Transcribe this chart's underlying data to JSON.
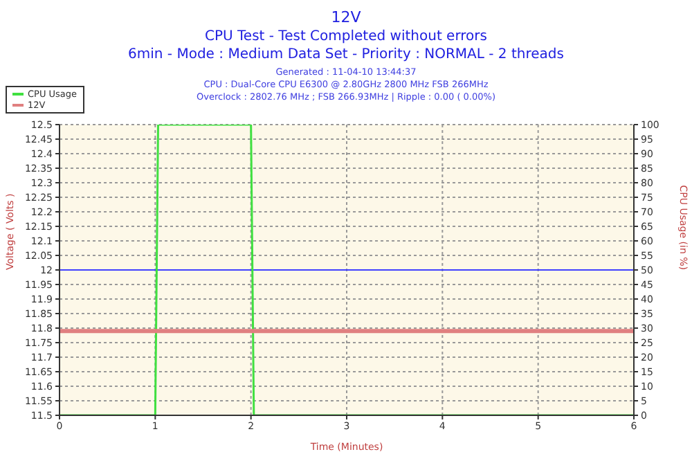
{
  "chart_data": {
    "type": "line",
    "title": "12V",
    "subtitle": "CPU Test - Test Completed without errors\n6min - Mode : Medium Data Set - Priority : NORMAL - 2 threads",
    "annotations": [
      "Generated : 11-04-10 13:44:37",
      "CPU : Dual-Core CPU E6300 @ 2.80GHz 2800 MHz FSB 266MHz",
      "Overclock : 2802.76 MHz ; FSB 266.93MHz | Ripple : 0.00 ( 0.00%)"
    ],
    "xlabel": "Time (Minutes)",
    "ylabel": "Voltage ( Volts )",
    "y2label": "CPU Usage (in %)",
    "series": [
      {
        "name": "CPU Usage",
        "color": "#40e040",
        "axis": "y2",
        "x": [
          0,
          1,
          1.03,
          2,
          2.03,
          6
        ],
        "values": [
          0,
          0,
          100,
          100,
          0,
          0
        ]
      },
      {
        "name": "12V",
        "color": "#e08080",
        "x": [
          0,
          6
        ],
        "values": [
          11.79,
          11.79
        ]
      }
    ],
    "xlim": [
      0,
      6
    ],
    "xticks": [
      0,
      1,
      2,
      3,
      4,
      5,
      6
    ],
    "ylim": [
      11.5,
      12.5
    ],
    "yticks": [
      11.5,
      11.55,
      11.6,
      11.65,
      11.7,
      11.75,
      11.8,
      11.85,
      11.9,
      11.95,
      12,
      12.05,
      12.1,
      12.15,
      12.2,
      12.25,
      12.3,
      12.35,
      12.4,
      12.45,
      12.5
    ],
    "y2lim": [
      0,
      100
    ],
    "y2ticks": [
      0,
      5,
      10,
      15,
      20,
      25,
      30,
      35,
      40,
      45,
      50,
      55,
      60,
      65,
      70,
      75,
      80,
      85,
      90,
      95,
      100
    ],
    "ref_lines": [
      {
        "axis": "y",
        "value": 12,
        "color": "#4040ff"
      }
    ],
    "grid": true,
    "legend": "top left",
    "marker": "none",
    "line_style": "solid"
  }
}
